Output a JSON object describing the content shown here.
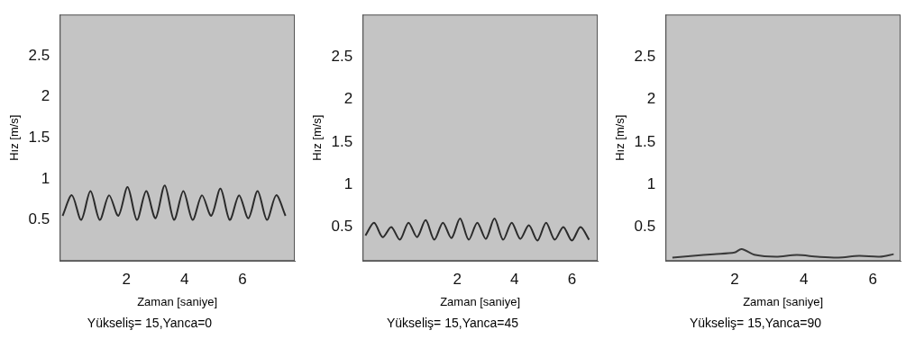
{
  "chart_data": [
    {
      "type": "line",
      "title": "Yükseliş= 15,Yanca=0",
      "x_label": "Zaman [saniye]",
      "y_label": "Hız [m/s]",
      "x": [
        -0.2,
        0.12,
        0.44,
        0.76,
        1.08,
        1.4,
        1.72,
        2.04,
        2.36,
        2.68,
        3.0,
        3.32,
        3.64,
        3.96,
        4.28,
        4.6,
        4.92,
        5.24,
        5.56,
        5.88,
        6.2,
        6.52,
        6.84,
        7.16,
        7.48
      ],
      "values": [
        0.55,
        0.8,
        0.5,
        0.85,
        0.5,
        0.8,
        0.55,
        0.9,
        0.5,
        0.85,
        0.52,
        0.92,
        0.5,
        0.85,
        0.5,
        0.8,
        0.55,
        0.88,
        0.5,
        0.8,
        0.52,
        0.85,
        0.5,
        0.8,
        0.55
      ],
      "color": "#2b2b2b",
      "xlim": [
        -0.3,
        7.8
      ],
      "ylim": [
        0,
        3
      ],
      "xticks": [
        2,
        4,
        6
      ],
      "yticks": [
        0.5,
        1,
        1.5,
        2,
        2.5
      ],
      "grid": false
    },
    {
      "type": "line",
      "title": "Yükseliş= 15,Yanca=45",
      "x_label": "Zaman [saniye]",
      "y_label": "Hız [m/s]",
      "x": [
        -1.2,
        -0.9,
        -0.6,
        -0.3,
        0.0,
        0.3,
        0.6,
        0.9,
        1.2,
        1.5,
        1.8,
        2.1,
        2.4,
        2.7,
        3.0,
        3.3,
        3.6,
        3.9,
        4.2,
        4.5,
        4.8,
        5.1,
        5.4,
        5.7,
        6.0,
        6.3,
        6.6
      ],
      "values": [
        0.4,
        0.55,
        0.38,
        0.5,
        0.35,
        0.55,
        0.38,
        0.58,
        0.35,
        0.55,
        0.37,
        0.6,
        0.35,
        0.55,
        0.36,
        0.6,
        0.35,
        0.55,
        0.36,
        0.52,
        0.34,
        0.55,
        0.35,
        0.5,
        0.34,
        0.5,
        0.35
      ],
      "color": "#2b2b2b",
      "xlim": [
        -1.3,
        6.9
      ],
      "ylim": [
        0.1,
        3
      ],
      "xticks": [
        2,
        4,
        6
      ],
      "yticks": [
        0.5,
        1,
        1.5,
        2,
        2.5
      ],
      "grid": false
    },
    {
      "type": "line",
      "title": "Yükseliş= 15,Yanca=90",
      "x_label": "Zaman [saniye]",
      "y_label": "Hız [m/s]",
      "x": [
        0.2,
        0.8,
        1.4,
        2.0,
        2.2,
        2.6,
        3.2,
        3.8,
        4.4,
        5.0,
        5.6,
        6.2,
        6.6
      ],
      "values": [
        0.14,
        0.16,
        0.18,
        0.2,
        0.24,
        0.17,
        0.15,
        0.17,
        0.15,
        0.14,
        0.16,
        0.15,
        0.18
      ],
      "color": "#3a3a3a",
      "xlim": [
        0,
        6.8
      ],
      "ylim": [
        0.1,
        3
      ],
      "xticks": [
        2,
        4,
        6
      ],
      "yticks": [
        0.5,
        1,
        1.5,
        2,
        2.5
      ],
      "grid": false
    }
  ]
}
